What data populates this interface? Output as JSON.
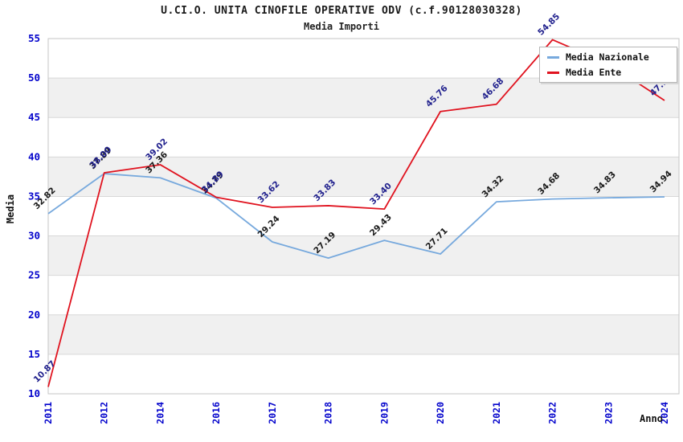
{
  "title": "U.CI.O. UNITA CINOFILE OPERATIVE ODV (c.f.90128030328)",
  "subtitle": "Media Importi",
  "colors": {
    "nazionale_line": "#77a9dd",
    "ente_line": "#e0131f",
    "nazionale_label": "#1b1b1b",
    "ente_label": "#22228e",
    "tick_label": "#0404cc",
    "band": "#f0f0f0",
    "grid": "#d8d8d8",
    "plot_border": "#c6c6c6",
    "axis_title": "#111111"
  },
  "legend": {
    "items": [
      {
        "label": "Media Nazionale",
        "color": "#77a9dd"
      },
      {
        "label": "Media Ente",
        "color": "#e0131f"
      }
    ]
  },
  "chart_data": {
    "type": "line",
    "title": "U.CI.O. UNITA CINOFILE OPERATIVE ODV (c.f.90128030328)",
    "subtitle": "Media Importi",
    "xlabel": "Anno",
    "ylabel": "Media",
    "x": [
      "2011",
      "2012",
      "2014",
      "2016",
      "2017",
      "2018",
      "2019",
      "2020",
      "2021",
      "2022",
      "2023",
      "2024"
    ],
    "ylim": [
      10,
      55
    ],
    "ytick_step": 5,
    "grid": true,
    "banded_background": true,
    "legend_position": "top-right",
    "series": [
      {
        "name": "Media Nazionale",
        "values": [
          32.82,
          37.89,
          37.36,
          34.79,
          29.24,
          27.19,
          29.43,
          27.71,
          34.32,
          34.68,
          34.83,
          34.94
        ]
      },
      {
        "name": "Media Ente",
        "values": [
          10.87,
          38.0,
          39.02,
          34.89,
          33.62,
          33.83,
          33.4,
          45.76,
          46.68,
          54.85,
          51.8,
          47.16
        ],
        "hidden_label_indexes": [
          10
        ]
      }
    ]
  }
}
